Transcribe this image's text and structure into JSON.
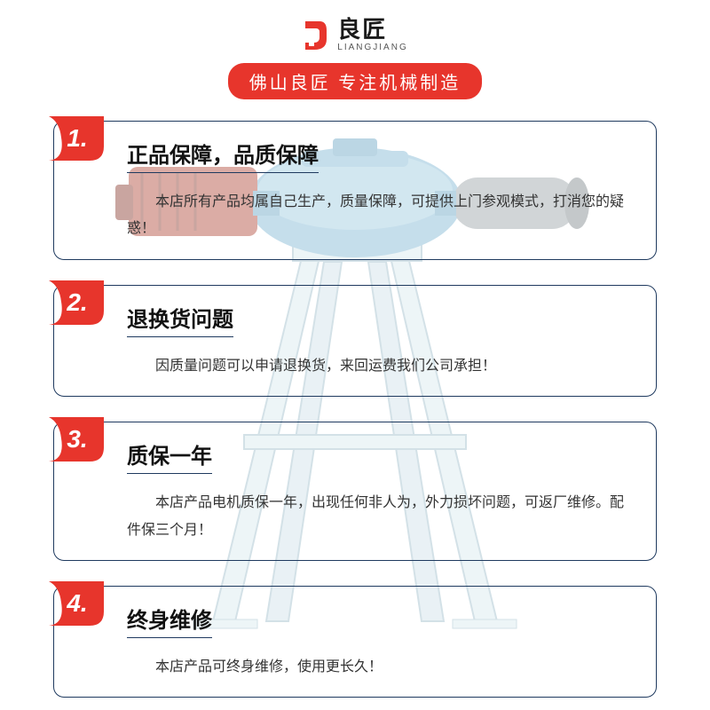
{
  "brand": {
    "logo_cn": "良匠",
    "logo_en": "LIANGJIANG",
    "logo_color": "#e7352c"
  },
  "tagline": {
    "text": "佛山良匠  专注机械制造",
    "bg_color": "#e7352c",
    "text_color": "#ffffff"
  },
  "frame": {
    "border_color": "#1f3a5f",
    "badge_color": "#e7352c",
    "badge_text_color": "#ffffff"
  },
  "machine_palette": {
    "motor_body": "#7fb7d4",
    "motor_shadow": "#5a94b5",
    "coupling": "#b04a3a",
    "shaft": "#c9ccd0",
    "stand": "#d9e9ef",
    "stand_edge": "#9fbecb"
  },
  "items": [
    {
      "num": "1.",
      "title": "正品保障，品质保障",
      "desc": "本店所有产品均属自己生产，质量保障，可提供上门参观模式，打消您的疑惑！"
    },
    {
      "num": "2.",
      "title": "退换货问题",
      "desc": "因质量问题可以申请退换货，来回运费我们公司承担！"
    },
    {
      "num": "3.",
      "title": "质保一年",
      "desc": "本店产品电机质保一年，出现任何非人为，外力损坏问题，可返厂维修。配件保三个月！"
    },
    {
      "num": "4.",
      "title": "终身维修",
      "desc": "本店产品可终身维修，使用更长久！"
    }
  ]
}
